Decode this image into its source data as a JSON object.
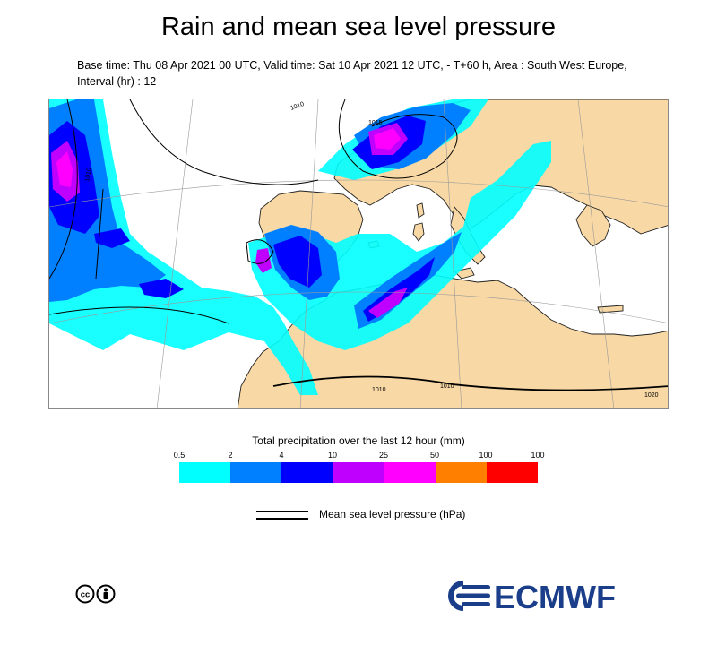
{
  "header": {
    "title": "Rain and mean sea level pressure",
    "subtitle": "Base time: Thu 08 Apr 2021 00 UTC, Valid time: Sat 10 Apr 2021 12 UTC, - T+60 h, Area : South West Europe, Interval (hr) : 12"
  },
  "map": {
    "isobar_labels": [
      "1010",
      "1015",
      "1010",
      "1010",
      "1010",
      "1020"
    ],
    "colors": {
      "land": "#f8d8a4",
      "sea": "#ffffff",
      "coast": "#222222",
      "graticule": "#9a9a9a"
    }
  },
  "legend": {
    "title": "Total precipitation over the last 12 hour (mm)",
    "ticks": [
      "0.5",
      "2",
      "4",
      "10",
      "25",
      "50",
      "100",
      "100"
    ],
    "colors": [
      "#00ffff",
      "#0080ff",
      "#0000ff",
      "#c000ff",
      "#ff00ff",
      "#ff8000",
      "#ff0000"
    ]
  },
  "pressure_legend": {
    "label": "Mean sea level pressure (hPa)"
  },
  "footer": {
    "license_icon": "creative-commons-by-icon",
    "logo_text": "ECMWF",
    "logo_color": "#1b3e8a"
  }
}
